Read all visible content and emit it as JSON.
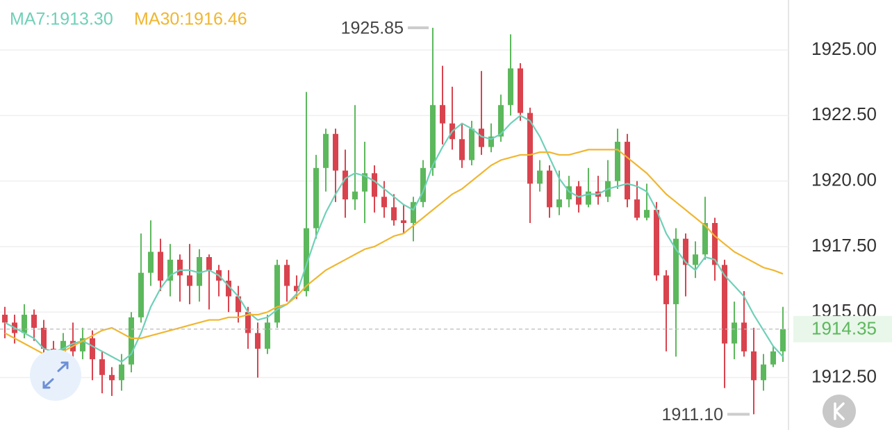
{
  "chart_data": {
    "type": "candlestick",
    "series": [
      {
        "name": "MA7:1913.30",
        "color": "#6fd0b8",
        "values": [
          1914.6,
          1914.4,
          1914.2,
          1914.0,
          1913.6,
          1913.5,
          1913.6,
          1913.8,
          1913.9,
          1913.7,
          1913.5,
          1913.3,
          1913.1,
          1913.4,
          1914.2,
          1915.2,
          1915.9,
          1916.4,
          1916.6,
          1916.6,
          1916.5,
          1916.6,
          1916.4,
          1916.0,
          1915.6,
          1915.0,
          1914.7,
          1914.8,
          1915.1,
          1915.3,
          1915.7,
          1916.8,
          1917.9,
          1918.8,
          1919.5,
          1920.1,
          1920.3,
          1920.2,
          1920.0,
          1919.7,
          1919.4,
          1919.1,
          1918.9,
          1919.6,
          1920.6,
          1921.3,
          1921.9,
          1922.2,
          1922.0,
          1921.7,
          1921.6,
          1921.8,
          1922.2,
          1922.5,
          1922.3,
          1921.7,
          1920.9,
          1920.1,
          1919.6,
          1919.4,
          1919.5,
          1919.5,
          1919.7,
          1919.8,
          1919.9,
          1919.8,
          1919.6,
          1918.9,
          1918.0,
          1917.4,
          1916.9,
          1916.6,
          1917.1,
          1917.0,
          1916.4,
          1916.0,
          1915.6,
          1914.9,
          1914.3,
          1913.7,
          1913.3
        ]
      },
      {
        "name": "MA30:1916.46",
        "color": "#f0b630",
        "values": [
          1914.2,
          1914.0,
          1913.8,
          1913.6,
          1913.4,
          1913.4,
          1913.5,
          1913.7,
          1913.9,
          1914.1,
          1914.3,
          1914.4,
          1914.2,
          1914.0,
          1914.0,
          1914.1,
          1914.2,
          1914.3,
          1914.4,
          1914.5,
          1914.6,
          1914.7,
          1914.7,
          1914.8,
          1914.8,
          1914.9,
          1914.9,
          1915.0,
          1915.2,
          1915.3,
          1915.6,
          1916.0,
          1916.3,
          1916.6,
          1916.8,
          1917.0,
          1917.2,
          1917.4,
          1917.5,
          1917.7,
          1917.9,
          1918.0,
          1918.3,
          1918.6,
          1918.9,
          1919.2,
          1919.5,
          1919.7,
          1920.0,
          1920.3,
          1920.6,
          1920.8,
          1920.9,
          1921.0,
          1921.0,
          1921.1,
          1921.1,
          1921.0,
          1921.0,
          1921.1,
          1921.2,
          1921.2,
          1921.2,
          1921.2,
          1920.9,
          1920.6,
          1920.3,
          1919.9,
          1919.5,
          1919.2,
          1918.9,
          1918.6,
          1918.3,
          1917.9,
          1917.6,
          1917.3,
          1917.1,
          1916.9,
          1916.7,
          1916.6,
          1916.46
        ]
      }
    ],
    "open": [
      1914.9,
      1914.6,
      1914.2,
      1914.9,
      1914.4,
      1913.6,
      1913.2,
      1913.9,
      1913.5,
      1914.0,
      1913.2,
      1912.6,
      1912.4,
      1913.0,
      1914.8,
      1916.5,
      1917.3,
      1916.2,
      1917.0,
      1916.4,
      1916.0,
      1917.1,
      1916.6,
      1916.2,
      1915.6,
      1915.0,
      1914.2,
      1913.6,
      1914.6,
      1916.8,
      1916.0,
      1915.8,
      1918.2,
      1920.5,
      1921.8,
      1920.4,
      1919.3,
      1919.6,
      1920.3,
      1919.4,
      1919.0,
      1918.5,
      1918.4,
      1919.2,
      1920.5,
      1922.9,
      1922.2,
      1921.6,
      1920.8,
      1922.0,
      1921.3,
      1921.7,
      1922.9,
      1924.3,
      1922.6,
      1919.9,
      1920.4,
      1919.0,
      1919.3,
      1919.8,
      1919.1,
      1919.6,
      1919.4,
      1920.0,
      1921.5,
      1919.3,
      1918.6,
      1918.9,
      1916.4,
      1915.3,
      1917.8,
      1916.8,
      1917.2,
      1918.4,
      1916.8,
      1913.8,
      1914.6,
      1913.5,
      1912.4,
      1913.0,
      1913.5
    ],
    "high": [
      1915.2,
      1914.9,
      1915.3,
      1915.1,
      1914.7,
      1913.9,
      1914.2,
      1914.6,
      1914.4,
      1914.3,
      1913.5,
      1912.9,
      1913.4,
      1915.0,
      1918.0,
      1918.5,
      1917.8,
      1917.6,
      1917.2,
      1917.6,
      1917.4,
      1917.2,
      1916.8,
      1916.6,
      1916.0,
      1915.2,
      1914.6,
      1914.9,
      1917.0,
      1917.0,
      1916.4,
      1923.4,
      1921.0,
      1922.0,
      1922.0,
      1921.2,
      1922.9,
      1921.5,
      1920.6,
      1920.0,
      1919.5,
      1919.1,
      1919.4,
      1920.8,
      1925.85,
      1924.4,
      1923.6,
      1922.2,
      1922.3,
      1924.2,
      1922.2,
      1923.3,
      1925.6,
      1924.5,
      1922.8,
      1920.8,
      1920.6,
      1920.4,
      1920.2,
      1920.0,
      1920.5,
      1920.2,
      1920.8,
      1922.0,
      1921.8,
      1920.0,
      1919.9,
      1919.2,
      1916.6,
      1918.2,
      1918.0,
      1917.7,
      1919.4,
      1918.6,
      1917.0,
      1915.4,
      1915.8,
      1914.4,
      1913.4,
      1913.7,
      1915.2
    ],
    "low": [
      1914.0,
      1913.8,
      1914.0,
      1913.9,
      1912.8,
      1912.2,
      1912.9,
      1913.0,
      1913.2,
      1912.4,
      1911.9,
      1911.8,
      1912.0,
      1912.7,
      1914.6,
      1916.0,
      1915.8,
      1915.6,
      1915.4,
      1915.3,
      1915.4,
      1915.1,
      1915.6,
      1915.0,
      1914.6,
      1913.6,
      1912.5,
      1913.4,
      1914.4,
      1915.4,
      1915.5,
      1915.6,
      1917.8,
      1919.6,
      1919.2,
      1918.6,
      1918.9,
      1918.4,
      1918.8,
      1918.6,
      1918.3,
      1918.0,
      1917.7,
      1919.0,
      1920.2,
      1921.4,
      1921.2,
      1920.5,
      1920.6,
      1921.0,
      1921.1,
      1921.5,
      1922.5,
      1922.3,
      1918.4,
      1919.6,
      1918.6,
      1918.7,
      1919.0,
      1918.8,
      1919.0,
      1919.1,
      1919.2,
      1919.7,
      1919.0,
      1918.5,
      1918.5,
      1916.2,
      1913.5,
      1913.3,
      1915.6,
      1916.3,
      1917.0,
      1916.2,
      1912.1,
      1913.2,
      1913.3,
      1911.1,
      1912.0,
      1912.9,
      1913.1
    ],
    "close": [
      1914.6,
      1914.2,
      1914.9,
      1914.4,
      1913.6,
      1913.2,
      1913.9,
      1913.5,
      1914.0,
      1913.2,
      1912.6,
      1912.4,
      1913.0,
      1914.8,
      1916.5,
      1917.3,
      1916.2,
      1917.0,
      1916.4,
      1916.0,
      1917.1,
      1916.6,
      1916.2,
      1915.6,
      1915.0,
      1914.2,
      1913.6,
      1914.6,
      1916.8,
      1916.0,
      1915.8,
      1918.2,
      1920.5,
      1921.8,
      1920.4,
      1919.3,
      1919.6,
      1920.3,
      1919.4,
      1919.0,
      1918.5,
      1918.4,
      1919.2,
      1920.5,
      1922.9,
      1922.2,
      1921.6,
      1920.8,
      1922.0,
      1921.3,
      1921.7,
      1922.9,
      1924.3,
      1922.6,
      1919.9,
      1920.4,
      1919.0,
      1919.3,
      1919.8,
      1919.1,
      1919.6,
      1919.4,
      1920.0,
      1921.5,
      1919.3,
      1918.6,
      1918.9,
      1916.4,
      1915.3,
      1917.8,
      1916.8,
      1917.2,
      1918.4,
      1916.8,
      1913.8,
      1914.6,
      1913.5,
      1912.4,
      1913.0,
      1913.5,
      1914.35
    ],
    "up_color": "#5cb85c",
    "down_color": "#d9434e",
    "ylim": [
      1910.5,
      1926.91
    ],
    "yticks": [
      {
        "value": 1912.5,
        "label": "1912.50"
      },
      {
        "value": 1915,
        "label": "1915.00"
      },
      {
        "value": 1917.5,
        "label": "1917.50"
      },
      {
        "value": 1920,
        "label": "1920.00"
      },
      {
        "value": 1922.5,
        "label": "1922.50"
      },
      {
        "value": 1925,
        "label": "1925.00"
      }
    ],
    "grid": true,
    "high_label": 1925.85,
    "low_label": {
      "value": 1911.1,
      "label": "1911.10"
    },
    "last_price": 1914.35
  }
}
